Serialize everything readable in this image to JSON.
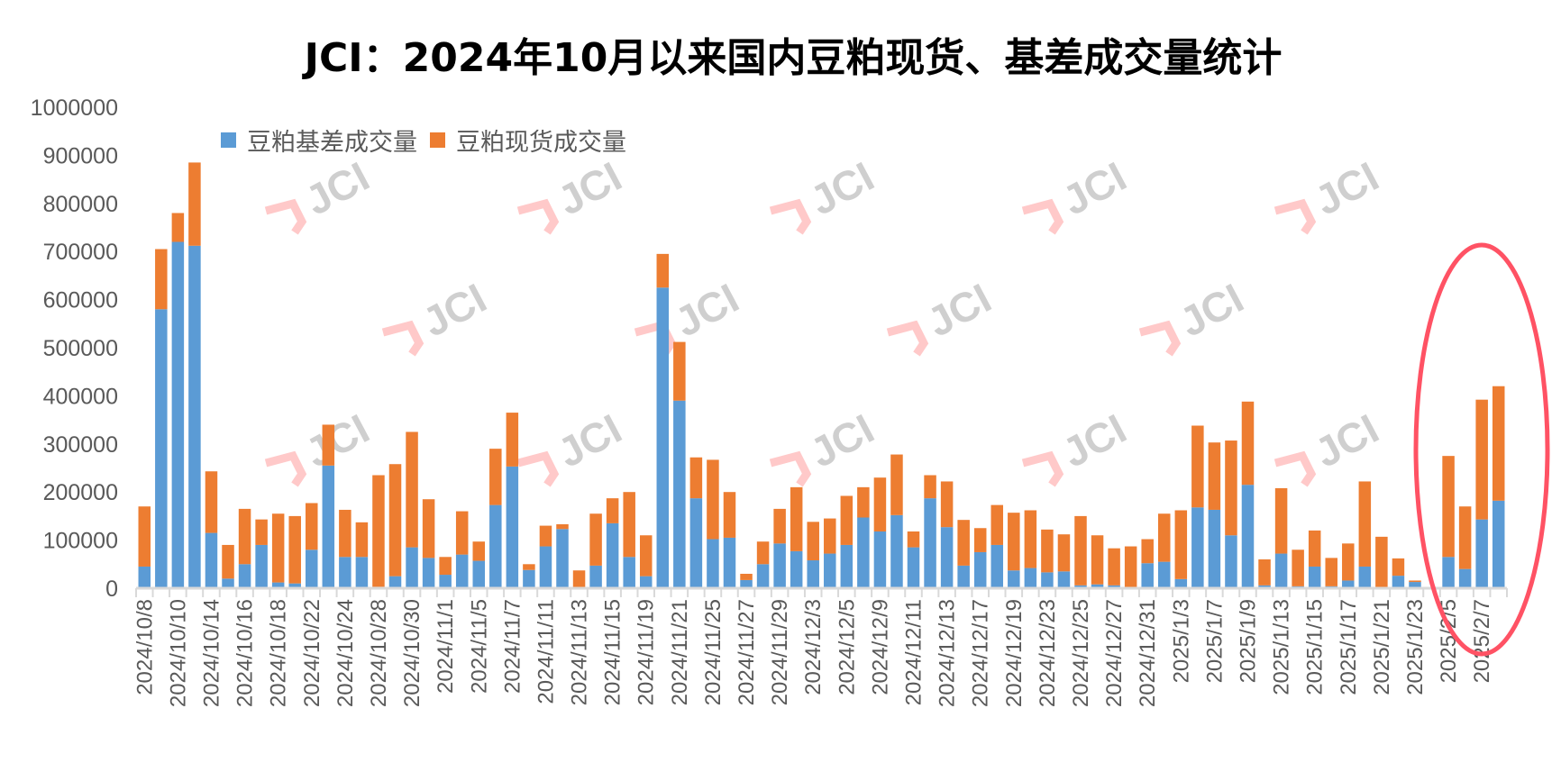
{
  "chart_data": {
    "type": "bar",
    "stacked": true,
    "title": "JCI：2024年10月以来国内豆粕现货、基差成交量统计",
    "xlabel": "",
    "ylabel": "",
    "ylim": [
      0,
      1000000
    ],
    "y_ticks": [
      "0",
      "100000",
      "200000",
      "300000",
      "400000",
      "500000",
      "600000",
      "700000",
      "800000",
      "900000",
      "1000000"
    ],
    "tick_labels": [
      "2024/10/8",
      "2024/10/10",
      "2024/10/14",
      "2024/10/16",
      "2024/10/18",
      "2024/10/22",
      "2024/10/24",
      "2024/10/28",
      "2024/10/30",
      "2024/11/1",
      "2024/11/5",
      "2024/11/7",
      "2024/11/11",
      "2024/11/13",
      "2024/11/15",
      "2024/11/19",
      "2024/11/21",
      "2024/11/25",
      "2024/11/27",
      "2024/11/29",
      "2024/12/3",
      "2024/12/5",
      "2024/12/9",
      "2024/12/11",
      "2024/12/13",
      "2024/12/17",
      "2024/12/19",
      "2024/12/23",
      "2024/12/25",
      "2024/12/27",
      "2024/12/31",
      "2025/1/3",
      "2025/1/7",
      "2025/1/9",
      "2025/1/13",
      "2025/1/15",
      "2025/1/17",
      "2025/1/21",
      "2025/1/23",
      "2025/2/5",
      "2025/2/7"
    ],
    "legend_position": "top-left",
    "grid": false,
    "series": [
      {
        "name": "豆粕基差成交量",
        "color": "#5b9bd5",
        "values": [
          45000,
          580000,
          720000,
          712000,
          115000,
          20000,
          50000,
          90000,
          12000,
          10000,
          80000,
          255000,
          65000,
          65000,
          3000,
          25000,
          85000,
          63000,
          28000,
          70000,
          57000,
          173000,
          253000,
          38000,
          87000,
          123000,
          0,
          47000,
          135000,
          65000,
          25000,
          625000,
          390000,
          187000,
          102000,
          105000,
          17000,
          50000,
          93000,
          77000,
          58000,
          72000,
          90000,
          147000,
          118000,
          152000,
          85000,
          187000,
          127000,
          47000,
          75000,
          90000,
          37000,
          42000,
          33000,
          35000,
          6000,
          8000,
          6000,
          2000,
          52000,
          55000,
          19000,
          168000,
          163000,
          110000,
          215000,
          6000,
          72000,
          4000,
          45000,
          4000,
          16000,
          45000,
          0,
          26000,
          13000,
          1000,
          65000,
          40000,
          143000,
          182000
        ]
      },
      {
        "name": "豆粕现货成交量",
        "color": "#ed7d31",
        "values": [
          125000,
          125000,
          60000,
          173000,
          128000,
          70000,
          115000,
          53000,
          143000,
          140000,
          97000,
          85000,
          98000,
          72000,
          232000,
          233000,
          240000,
          122000,
          37000,
          90000,
          40000,
          117000,
          112000,
          12000,
          43000,
          10000,
          37000,
          108000,
          52000,
          135000,
          85000,
          70000,
          122000,
          85000,
          165000,
          95000,
          13000,
          47000,
          72000,
          133000,
          80000,
          73000,
          102000,
          63000,
          112000,
          126000,
          33000,
          48000,
          95000,
          95000,
          50000,
          83000,
          120000,
          120000,
          89000,
          77000,
          144000,
          102000,
          77000,
          85000,
          50000,
          100000,
          143000,
          170000,
          140000,
          197000,
          173000,
          54000,
          136000,
          76000,
          75000,
          59000,
          77000,
          177000,
          107000,
          36000,
          3000,
          0,
          210000,
          130000,
          249000,
          238000
        ]
      }
    ],
    "annotation": "highlight-ellipse around 2025/2/5–2025/2/7 bars"
  },
  "watermark": "JCI",
  "highlight_color": "#ff5264"
}
